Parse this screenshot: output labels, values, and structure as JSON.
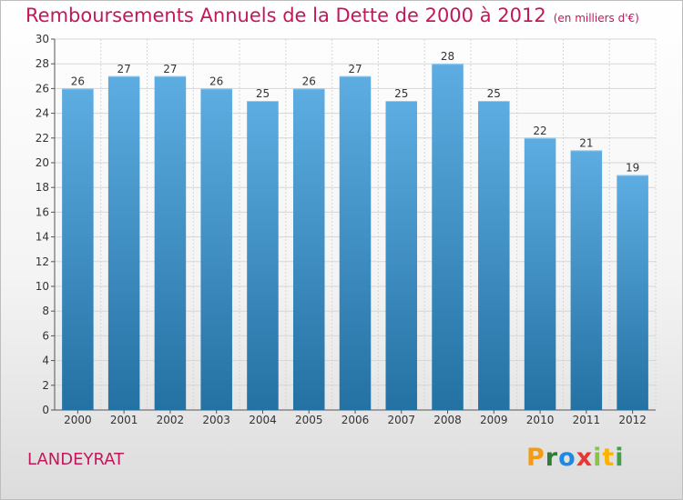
{
  "header": {
    "title": "Remboursements Annuels de la Dette de 2000 à 2012",
    "subtitle": "(en milliers d'€)"
  },
  "footer": {
    "commune": "LANDEYRAT",
    "logo": {
      "p": "P",
      "r": "r",
      "o": "o",
      "x": "x",
      "i1": "i",
      "t": "t",
      "i2": "i"
    }
  },
  "colors": {
    "title": "#c2185b",
    "bar_top": "#5dade2",
    "bar_bottom": "#2471a3",
    "grid": "#d6d6d6"
  },
  "chart_data": {
    "type": "bar",
    "title": "Remboursements Annuels de la Dette de 2000 à 2012",
    "subtitle": "(en milliers d'€)",
    "categories": [
      "2000",
      "2001",
      "2002",
      "2003",
      "2004",
      "2005",
      "2006",
      "2007",
      "2008",
      "2009",
      "2010",
      "2011",
      "2012"
    ],
    "values": [
      26,
      27,
      27,
      26,
      25,
      26,
      27,
      25,
      28,
      25,
      22,
      21,
      19
    ],
    "ylim": [
      0,
      30
    ],
    "yticks": [
      0,
      2,
      4,
      6,
      8,
      10,
      12,
      14,
      16,
      18,
      20,
      22,
      24,
      26,
      28,
      30
    ],
    "grid": true,
    "data_labels": true
  }
}
